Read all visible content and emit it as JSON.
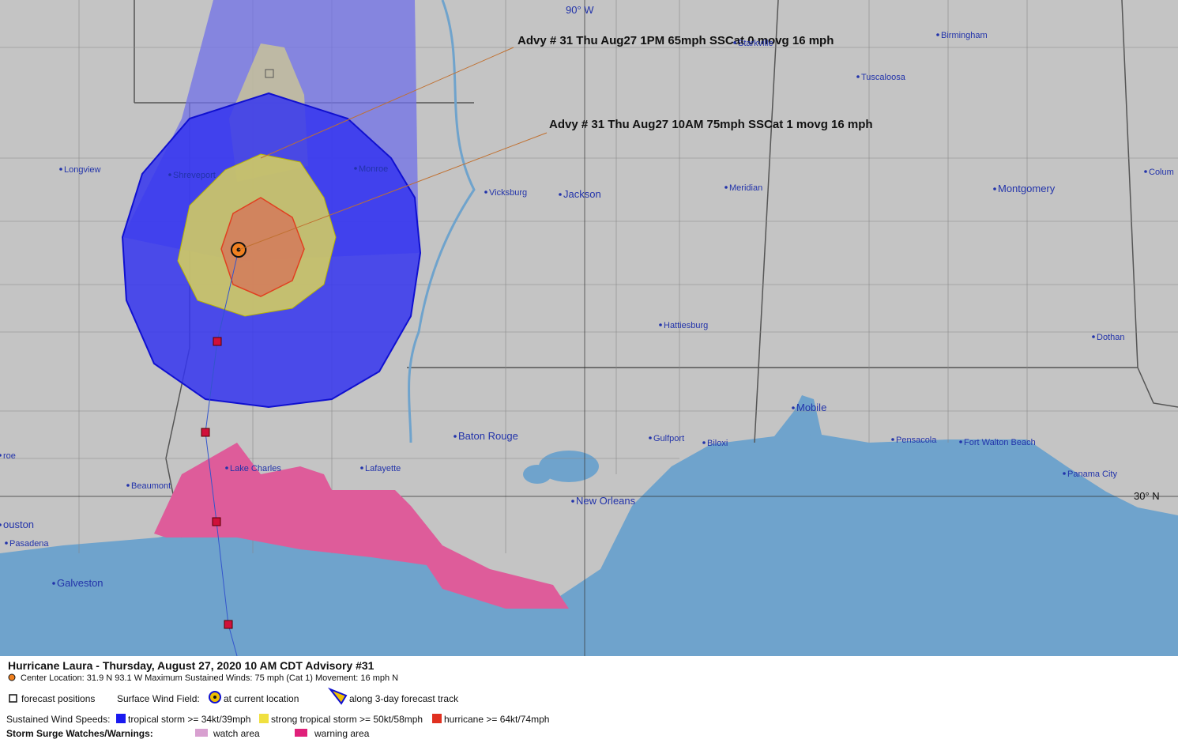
{
  "map": {
    "grid_labels": {
      "lon": "90° W",
      "lat": "30° N"
    },
    "annotations": [
      "Advy # 31 Thu Aug27 1PM  65mph SSCat 0 movg 16 mph",
      "Advy # 31 Thu Aug27 10AM  75mph SSCat 1 movg 16 mph"
    ],
    "cities": [
      "Birmingham",
      "Starkville",
      "Tuscaloosa",
      "Longview",
      "Shreveport",
      "Monroe",
      "Vicksburg",
      "Jackson",
      "Meridian",
      "Montgomery",
      "Colum",
      "Hattiesburg",
      "Dothan",
      "Mobile",
      "Baton Rouge",
      "Gulfport",
      "Biloxi",
      "Pensacola",
      "Fort Walton Beach",
      "Panama City",
      "Lake Charles",
      "Lafayette",
      "Beaumont",
      "New Orleans",
      "ouston",
      "Pasadena",
      "Galveston",
      "roe"
    ]
  },
  "footer": {
    "title": "Hurricane Laura  -  Thursday, August 27, 2020  10 AM CDT   Advisory #31",
    "details": "Center Location: 31.9 N  93.1 W  Maximum Sustained Winds: 75 mph (Cat 1) Movement: 16 mph N",
    "forecast_positions": "forecast positions",
    "surface_wind_field": "Surface Wind Field:",
    "at_current_location": "at current location",
    "along_track": "along 3-day forecast track",
    "sustained_wind_speeds": "Sustained Wind Speeds:",
    "tropical_storm": "tropical storm >= 34kt/39mph",
    "strong_tropical_storm": "strong tropical storm >= 50kt/58mph",
    "hurricane": "hurricane >= 64kt/74mph",
    "storm_surge": "Storm Surge Watches/Warnings:",
    "watch_area": "watch area",
    "warning_area": "warning area"
  }
}
